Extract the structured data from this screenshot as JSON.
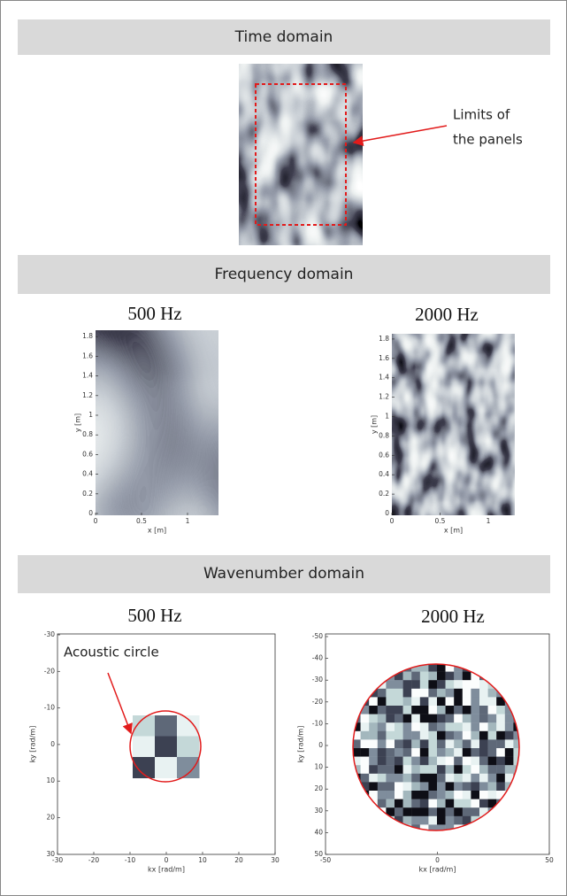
{
  "sections": [
    "Time domain",
    "Frequency domain",
    "Wavenumber domain"
  ],
  "time_domain": {
    "annotation": [
      "Limits of",
      "the panels"
    ]
  },
  "frequency_domain": {
    "panels": [
      {
        "title": "500 Hz",
        "xlabel": "x [m]",
        "ylabel": "y [m]",
        "xticks": [
          "0",
          "0.5",
          "1"
        ],
        "yticks": [
          "0",
          "0.2",
          "0.4",
          "0.6",
          "0.8",
          "1",
          "1.2",
          "1.4",
          "1.6",
          "1.8"
        ]
      },
      {
        "title": "2000 Hz",
        "xlabel": "x [m]",
        "ylabel": "y [m]",
        "xticks": [
          "0",
          "0.5",
          "1"
        ],
        "yticks": [
          "0",
          "0.2",
          "0.4",
          "0.6",
          "0.8",
          "1",
          "1.2",
          "1.4",
          "1.6",
          "1.8"
        ]
      }
    ]
  },
  "wavenumber_domain": {
    "annotation": "Acoustic circle",
    "panels": [
      {
        "title": "500 Hz",
        "xlabel": "kx [rad/m]",
        "ylabel": "ky [rad/m]",
        "xticks": [
          "-30",
          "-20",
          "-10",
          "0",
          "10",
          "20",
          "30"
        ],
        "yticks": [
          "-30",
          "-20",
          "-10",
          "0",
          "10",
          "20",
          "30"
        ]
      },
      {
        "title": "2000 Hz",
        "xlabel": "kx [rad/m]",
        "ylabel": "ky [rad/m]",
        "xticks": [
          "-50",
          "0",
          "50"
        ],
        "yticks": [
          "-50",
          "-40",
          "-30",
          "-20",
          "-10",
          "0",
          "10",
          "20",
          "30",
          "40",
          "50"
        ]
      }
    ]
  }
}
